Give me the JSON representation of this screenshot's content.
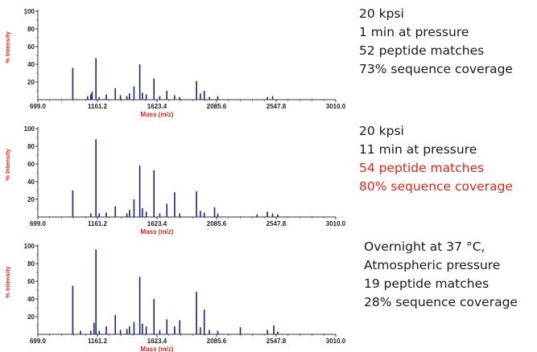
{
  "chart_data": [
    {
      "type": "bar",
      "xlabel": "Mass (m/z)",
      "ylabel": "% Intensity",
      "xlim": [
        699.0,
        3010.0
      ],
      "ylim": [
        0,
        100
      ],
      "x_ticks": [
        "699.0",
        "1161.2",
        "1623.4",
        "2085.6",
        "2547.8",
        "3010.0"
      ],
      "y_ticks": [
        "20",
        "40",
        "60",
        "80",
        "100"
      ],
      "peaks": [
        {
          "mz": 970,
          "i": 36
        },
        {
          "mz": 1085,
          "i": 4
        },
        {
          "mz": 1110,
          "i": 6
        },
        {
          "mz": 1120,
          "i": 9
        },
        {
          "mz": 1150,
          "i": 47
        },
        {
          "mz": 1175,
          "i": 3
        },
        {
          "mz": 1230,
          "i": 6
        },
        {
          "mz": 1300,
          "i": 13
        },
        {
          "mz": 1340,
          "i": 5
        },
        {
          "mz": 1390,
          "i": 4
        },
        {
          "mz": 1410,
          "i": 7
        },
        {
          "mz": 1445,
          "i": 15
        },
        {
          "mz": 1490,
          "i": 40
        },
        {
          "mz": 1510,
          "i": 8
        },
        {
          "mz": 1540,
          "i": 6
        },
        {
          "mz": 1600,
          "i": 24
        },
        {
          "mz": 1645,
          "i": 4
        },
        {
          "mz": 1700,
          "i": 10
        },
        {
          "mz": 1760,
          "i": 5
        },
        {
          "mz": 1800,
          "i": 3
        },
        {
          "mz": 1930,
          "i": 21
        },
        {
          "mz": 1960,
          "i": 7
        },
        {
          "mz": 1990,
          "i": 10
        },
        {
          "mz": 2030,
          "i": 3
        },
        {
          "mz": 2095,
          "i": 4
        },
        {
          "mz": 2480,
          "i": 3
        },
        {
          "mz": 2520,
          "i": 4
        }
      ]
    },
    {
      "type": "bar",
      "xlabel": "Mass (m/z)",
      "ylabel": "% Intensity",
      "xlim": [
        699.0,
        3010.0
      ],
      "ylim": [
        0,
        100
      ],
      "x_ticks": [
        "699.0",
        "1161.2",
        "1623.4",
        "2085.6",
        "2547.8",
        "3010.0"
      ],
      "y_ticks": [
        "20",
        "40",
        "60",
        "80",
        "100"
      ],
      "peaks": [
        {
          "mz": 970,
          "i": 30
        },
        {
          "mz": 1110,
          "i": 4
        },
        {
          "mz": 1150,
          "i": 88
        },
        {
          "mz": 1175,
          "i": 4
        },
        {
          "mz": 1230,
          "i": 5
        },
        {
          "mz": 1300,
          "i": 12
        },
        {
          "mz": 1390,
          "i": 4
        },
        {
          "mz": 1410,
          "i": 8
        },
        {
          "mz": 1445,
          "i": 20
        },
        {
          "mz": 1490,
          "i": 58
        },
        {
          "mz": 1510,
          "i": 10
        },
        {
          "mz": 1540,
          "i": 6
        },
        {
          "mz": 1600,
          "i": 53
        },
        {
          "mz": 1645,
          "i": 4
        },
        {
          "mz": 1700,
          "i": 15
        },
        {
          "mz": 1760,
          "i": 28
        },
        {
          "mz": 1800,
          "i": 4
        },
        {
          "mz": 1930,
          "i": 29
        },
        {
          "mz": 1960,
          "i": 7
        },
        {
          "mz": 1990,
          "i": 5
        },
        {
          "mz": 2070,
          "i": 11
        },
        {
          "mz": 2095,
          "i": 4
        },
        {
          "mz": 2400,
          "i": 3
        },
        {
          "mz": 2480,
          "i": 6
        },
        {
          "mz": 2520,
          "i": 4
        },
        {
          "mz": 2560,
          "i": 3
        }
      ]
    },
    {
      "type": "bar",
      "xlabel": "Mass (m/z)",
      "ylabel": "% Intensity",
      "xlim": [
        699.0,
        3010.0
      ],
      "ylim": [
        0,
        100
      ],
      "x_ticks": [
        "699.0",
        "1161.2",
        "1623.4",
        "2085.6",
        "2547.8",
        "3010.0"
      ],
      "y_ticks": [
        "20",
        "40",
        "60",
        "80",
        "100"
      ],
      "peaks": [
        {
          "mz": 970,
          "i": 55
        },
        {
          "mz": 1030,
          "i": 4
        },
        {
          "mz": 1110,
          "i": 4
        },
        {
          "mz": 1135,
          "i": 13
        },
        {
          "mz": 1150,
          "i": 96
        },
        {
          "mz": 1175,
          "i": 4
        },
        {
          "mz": 1230,
          "i": 9
        },
        {
          "mz": 1300,
          "i": 22
        },
        {
          "mz": 1340,
          "i": 5
        },
        {
          "mz": 1390,
          "i": 6
        },
        {
          "mz": 1410,
          "i": 9
        },
        {
          "mz": 1445,
          "i": 14
        },
        {
          "mz": 1490,
          "i": 65
        },
        {
          "mz": 1510,
          "i": 12
        },
        {
          "mz": 1540,
          "i": 9
        },
        {
          "mz": 1600,
          "i": 40
        },
        {
          "mz": 1645,
          "i": 5
        },
        {
          "mz": 1700,
          "i": 17
        },
        {
          "mz": 1760,
          "i": 9
        },
        {
          "mz": 1800,
          "i": 16
        },
        {
          "mz": 1930,
          "i": 48
        },
        {
          "mz": 1960,
          "i": 8
        },
        {
          "mz": 1990,
          "i": 28
        },
        {
          "mz": 2030,
          "i": 5
        },
        {
          "mz": 2095,
          "i": 4
        },
        {
          "mz": 2270,
          "i": 8
        },
        {
          "mz": 2480,
          "i": 5
        },
        {
          "mz": 2530,
          "i": 10
        },
        {
          "mz": 2560,
          "i": 3
        }
      ]
    }
  ],
  "annotations": [
    [
      "20 kpsi",
      "1 min at pressure",
      "52 peptide matches",
      "73% sequence coverage"
    ],
    [
      "20 kpsi",
      "11 min at pressure",
      "54 peptide matches",
      "80% sequence coverage"
    ],
    [
      "Overnight at 37 °C,",
      "Atmospheric pressure",
      "19 peptide matches",
      "28% sequence coverage"
    ]
  ],
  "highlight_color": "#e0241b",
  "bar_color": "#1a237e"
}
